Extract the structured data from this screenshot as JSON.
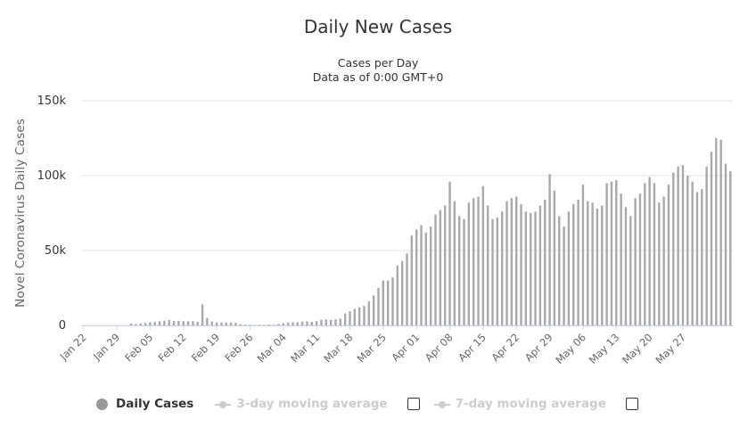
{
  "chart": {
    "title": "Daily New Cases",
    "subtitle_line1": "Cases per Day",
    "subtitle_line2": "Data as of 0:00 GMT+0"
  },
  "legend": {
    "daily_label": "Daily Cases",
    "avg3_label": "3-day moving average",
    "avg7_label": "7-day moving average"
  },
  "colors": {
    "bar": "#a9a9a9",
    "grid": "#e6e6e6",
    "legend_inactive": "#cccccc",
    "text": "#333333",
    "axis_text": "#666666"
  },
  "chart_data": {
    "type": "bar",
    "title": "Daily New Cases",
    "subtitle": "Cases per Day | Data as of 0:00 GMT+0",
    "ylabel": "Novel Coronavirus Daily Cases",
    "xlabel": "",
    "ylim": [
      0,
      150000
    ],
    "y_ticks": [
      "0",
      "50k",
      "100k",
      "150k"
    ],
    "y_tick_values": [
      0,
      50000,
      100000,
      150000
    ],
    "grid": true,
    "legend_position": "bottom",
    "x_start": "Jan 22",
    "x_end": "May 31",
    "x_tick_labels": [
      "Jan 22",
      "Jan 29",
      "Feb 05",
      "Feb 12",
      "Feb 19",
      "Feb 26",
      "Mar 04",
      "Mar 11",
      "Mar 18",
      "Mar 25",
      "Apr 01",
      "Apr 08",
      "Apr 15",
      "Apr 22",
      "Apr 29",
      "May 06",
      "May 13",
      "May 20",
      "May 27"
    ],
    "series": [
      {
        "name": "Daily Cases",
        "values": [
          0,
          0,
          0,
          0,
          0,
          0,
          0,
          0,
          0,
          0,
          1300,
          900,
          1400,
          1700,
          2100,
          2400,
          2800,
          3200,
          3600,
          3000,
          3100,
          2800,
          2800,
          2800,
          2400,
          14100,
          5000,
          2600,
          2000,
          2000,
          1900,
          1900,
          1700,
          800,
          500,
          500,
          300,
          500,
          400,
          600,
          400,
          1000,
          1500,
          1900,
          2100,
          2200,
          2600,
          2700,
          2400,
          2900,
          3800,
          4000,
          3600,
          4100,
          4500,
          8000,
          9500,
          11000,
          12000,
          13000,
          16000,
          20000,
          25000,
          30000,
          30000,
          32000,
          40000,
          43000,
          48000,
          60000,
          64000,
          67000,
          62000,
          66000,
          74000,
          77000,
          80000,
          96000,
          83000,
          73000,
          71000,
          82000,
          85000,
          86000,
          93000,
          80000,
          71000,
          72000,
          76000,
          83000,
          85000,
          86000,
          81000,
          76000,
          75000,
          76000,
          80000,
          84000,
          101000,
          90000,
          73000,
          66000,
          76000,
          81000,
          84000,
          94000,
          83000,
          82000,
          78000,
          80000,
          95000,
          96000,
          97000,
          88000,
          79000,
          73000,
          85000,
          88000,
          95000,
          99000,
          95000,
          82000,
          86000,
          94000,
          102000,
          106000,
          107000,
          100000,
          96000,
          89000,
          91000,
          106000,
          116000,
          125000,
          124000,
          108000,
          103000
        ]
      },
      {
        "name": "3-day moving average",
        "values": []
      },
      {
        "name": "7-day moving average",
        "values": []
      }
    ]
  }
}
